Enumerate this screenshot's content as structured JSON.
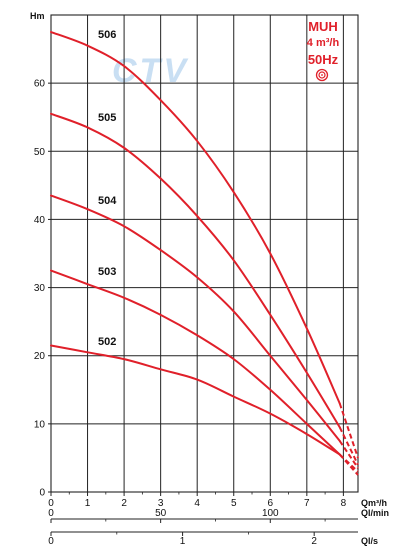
{
  "watermark": "CTV",
  "legend": {
    "model": "MUH",
    "flow": "4 m³/h",
    "frequency": "50Hz",
    "icon": "concentric-circles-icon"
  },
  "colors": {
    "curve": "#e0202a",
    "grid": "#222222",
    "legend": "#e0202a",
    "watermark": "#9ec6ea"
  },
  "chart_data": {
    "type": "line",
    "ylabel": "Hm",
    "ylim": [
      0,
      70
    ],
    "yticks": [
      "0",
      "10",
      "20",
      "30",
      "40",
      "50",
      "60"
    ],
    "ytick_values": [
      0,
      10,
      20,
      30,
      40,
      50,
      60
    ],
    "grid": true,
    "axes": [
      {
        "unit": "Qm³/h",
        "range": [
          0,
          8.4
        ],
        "ticks": [
          "0",
          "1",
          "2",
          "3",
          "4",
          "5",
          "6",
          "7",
          "8"
        ],
        "tick_values": [
          0,
          1,
          2,
          3,
          4,
          5,
          6,
          7,
          8
        ],
        "minor": [
          0.5,
          1.5,
          2.5,
          3.5,
          4.5,
          5.5,
          6.5,
          7.5
        ]
      },
      {
        "unit": "Ql/min",
        "range": [
          0,
          140
        ],
        "ticks": [
          "0",
          "50",
          "100"
        ],
        "tick_values": [
          0,
          50,
          100
        ],
        "minor": [
          25,
          75,
          125
        ]
      },
      {
        "unit": "Ql/s",
        "range": [
          0,
          2.333
        ],
        "ticks": [
          "0",
          "1",
          "2"
        ],
        "tick_values": [
          0,
          1,
          2
        ],
        "minor": [
          0.5,
          1.5
        ]
      }
    ],
    "series": [
      {
        "name": "506",
        "x": [
          0,
          1,
          2,
          3,
          4,
          5,
          6,
          7,
          7.9
        ],
        "y": [
          67.5,
          65.5,
          62.5,
          57.5,
          51.5,
          44.0,
          35.0,
          24.0,
          13.0
        ],
        "dashed_x": [
          7.9,
          8.4
        ],
        "dashed_y": [
          13.0,
          5.0
        ]
      },
      {
        "name": "505",
        "x": [
          0,
          1,
          2,
          3,
          4,
          5,
          6,
          7,
          7.9
        ],
        "y": [
          55.5,
          53.5,
          50.5,
          46.0,
          40.5,
          34.0,
          26.0,
          17.5,
          9.5
        ],
        "dashed_x": [
          7.9,
          8.4
        ],
        "dashed_y": [
          9.5,
          4.0
        ]
      },
      {
        "name": "504",
        "x": [
          0,
          1,
          2,
          3,
          4,
          5,
          6,
          7,
          7.9
        ],
        "y": [
          43.5,
          41.5,
          39.0,
          35.5,
          31.5,
          26.5,
          20.0,
          13.5,
          7.5
        ],
        "dashed_x": [
          7.9,
          8.4
        ],
        "dashed_y": [
          7.5,
          3.5
        ]
      },
      {
        "name": "503",
        "x": [
          0,
          1,
          2,
          3,
          4,
          5,
          6,
          7,
          7.9
        ],
        "y": [
          32.5,
          30.5,
          28.5,
          26.0,
          23.0,
          19.5,
          15.0,
          10.0,
          5.5
        ],
        "dashed_x": [
          7.9,
          8.4
        ],
        "dashed_y": [
          5.5,
          3.0
        ]
      },
      {
        "name": "502",
        "x": [
          0,
          1,
          2,
          3,
          4,
          5,
          6,
          7,
          7.9
        ],
        "y": [
          21.5,
          20.5,
          19.5,
          18.0,
          16.5,
          14.0,
          11.5,
          8.5,
          5.5
        ],
        "dashed_x": [
          7.9,
          8.4
        ],
        "dashed_y": [
          5.5,
          2.5
        ]
      }
    ]
  }
}
